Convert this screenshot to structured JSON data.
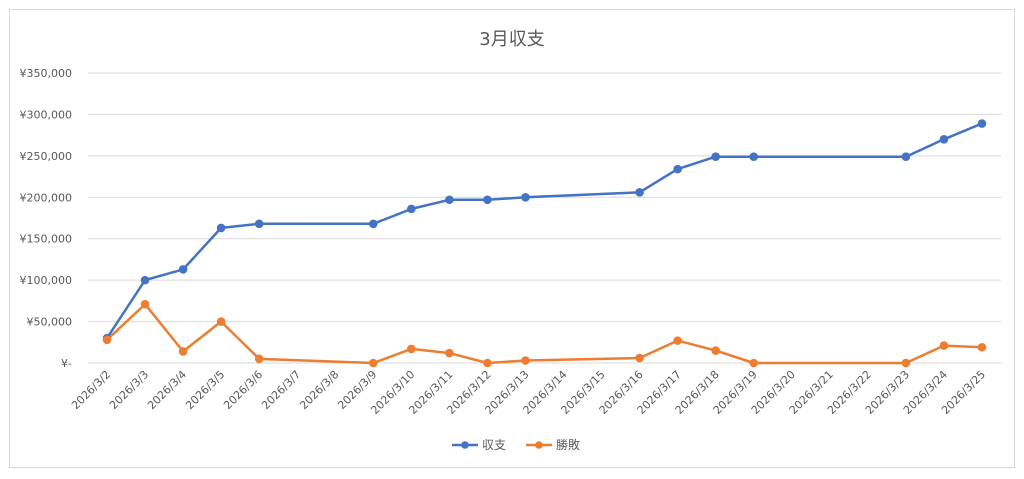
{
  "chart_data": {
    "type": "line",
    "title": "3月収支",
    "xlabel": "",
    "ylabel": "",
    "categories": [
      "2026/3/2",
      "2026/3/3",
      "2026/3/4",
      "2026/3/5",
      "2026/3/6",
      "2026/3/7",
      "2026/3/8",
      "2026/3/9",
      "2026/3/10",
      "2026/3/11",
      "2026/3/12",
      "2026/3/13",
      "2026/3/14",
      "2026/3/15",
      "2026/3/16",
      "2026/3/17",
      "2026/3/18",
      "2026/3/19",
      "2026/3/20",
      "2026/3/21",
      "2026/3/22",
      "2026/3/23",
      "2026/3/24",
      "2026/3/25"
    ],
    "ylim": [
      0,
      350000
    ],
    "y_ticks": [
      0,
      50000,
      100000,
      150000,
      200000,
      250000,
      300000,
      350000
    ],
    "y_tick_labels": [
      "¥-",
      "¥50,000",
      "¥100,000",
      "¥150,000",
      "¥200,000",
      "¥250,000",
      "¥300,000",
      "¥350,000"
    ],
    "grid": true,
    "legend": "bottom",
    "series": [
      {
        "name": "収支",
        "color": "#4472c4",
        "points": [
          {
            "x": "2026/3/2",
            "y": 30000
          },
          {
            "x": "2026/3/3",
            "y": 100000
          },
          {
            "x": "2026/3/4",
            "y": 113000
          },
          {
            "x": "2026/3/5",
            "y": 163000
          },
          {
            "x": "2026/3/6",
            "y": 168000
          },
          {
            "x": "2026/3/9",
            "y": 168000
          },
          {
            "x": "2026/3/10",
            "y": 186000
          },
          {
            "x": "2026/3/11",
            "y": 197000
          },
          {
            "x": "2026/3/12",
            "y": 197000
          },
          {
            "x": "2026/3/13",
            "y": 200000
          },
          {
            "x": "2026/3/16",
            "y": 206000
          },
          {
            "x": "2026/3/17",
            "y": 234000
          },
          {
            "x": "2026/3/18",
            "y": 249000
          },
          {
            "x": "2026/3/19",
            "y": 249000
          },
          {
            "x": "2026/3/23",
            "y": 249000
          },
          {
            "x": "2026/3/24",
            "y": 270000
          },
          {
            "x": "2026/3/25",
            "y": 289000
          }
        ]
      },
      {
        "name": "勝敗",
        "color": "#ed7d31",
        "points": [
          {
            "x": "2026/3/2",
            "y": 28000
          },
          {
            "x": "2026/3/3",
            "y": 71000
          },
          {
            "x": "2026/3/4",
            "y": 14000
          },
          {
            "x": "2026/3/5",
            "y": 50000
          },
          {
            "x": "2026/3/6",
            "y": 5000
          },
          {
            "x": "2026/3/9",
            "y": 0
          },
          {
            "x": "2026/3/10",
            "y": 17000
          },
          {
            "x": "2026/3/11",
            "y": 12000
          },
          {
            "x": "2026/3/12",
            "y": 0
          },
          {
            "x": "2026/3/13",
            "y": 3000
          },
          {
            "x": "2026/3/16",
            "y": 6000
          },
          {
            "x": "2026/3/17",
            "y": 27000
          },
          {
            "x": "2026/3/18",
            "y": 15000
          },
          {
            "x": "2026/3/19",
            "y": 0
          },
          {
            "x": "2026/3/23",
            "y": 0
          },
          {
            "x": "2026/3/24",
            "y": 21000
          },
          {
            "x": "2026/3/25",
            "y": 19000
          }
        ]
      }
    ]
  }
}
